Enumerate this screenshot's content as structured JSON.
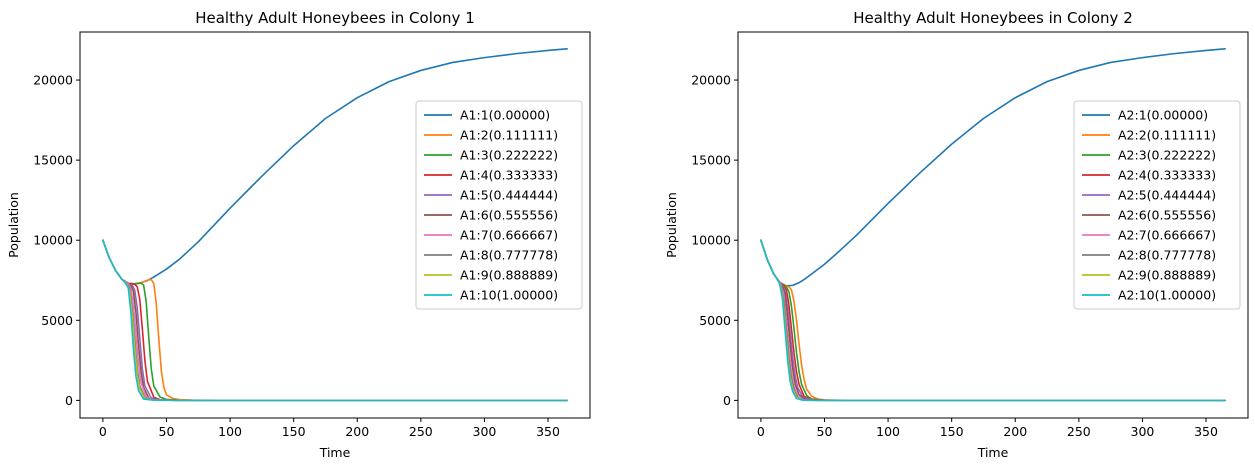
{
  "chart_data": [
    {
      "type": "line",
      "title": "Healthy Adult Honeybees in Colony 1",
      "xlabel": "Time",
      "ylabel": "Population",
      "xlim": [
        -18,
        383
      ],
      "ylim": [
        -1100,
        23000
      ],
      "xticks": [
        0,
        50,
        100,
        150,
        200,
        250,
        300,
        350
      ],
      "yticks": [
        0,
        5000,
        10000,
        15000,
        20000
      ],
      "grid": false,
      "legend_position": "center-right",
      "series": [
        {
          "name": "A1:1(0.00000)",
          "color": "#1f77b4",
          "x": [
            0,
            5,
            10,
            15,
            20,
            25,
            30,
            35,
            40,
            50,
            60,
            75,
            100,
            125,
            150,
            175,
            200,
            225,
            250,
            275,
            300,
            325,
            350,
            365
          ],
          "y": [
            10000,
            8900,
            8100,
            7550,
            7300,
            7280,
            7350,
            7480,
            7700,
            8200,
            8800,
            9900,
            12000,
            14000,
            15900,
            17600,
            18900,
            19900,
            20600,
            21100,
            21400,
            21650,
            21850,
            21950
          ]
        },
        {
          "name": "A1:2(0.111111)",
          "color": "#ff7f0e",
          "x": [
            0,
            5,
            10,
            15,
            20,
            25,
            30,
            35,
            38,
            40,
            42,
            44,
            46,
            48,
            50,
            55,
            60,
            70,
            80,
            100,
            150,
            365
          ],
          "y": [
            10000,
            8900,
            8100,
            7550,
            7300,
            7280,
            7350,
            7500,
            7550,
            7300,
            6000,
            3800,
            1800,
            800,
            350,
            120,
            50,
            20,
            10,
            0,
            0,
            0
          ]
        },
        {
          "name": "A1:3(0.222222)",
          "color": "#2ca02c",
          "x": [
            0,
            5,
            10,
            15,
            20,
            25,
            30,
            32,
            34,
            36,
            38,
            40,
            45,
            50,
            60,
            80,
            365
          ],
          "y": [
            10000,
            8900,
            8100,
            7550,
            7300,
            7280,
            7320,
            7200,
            6200,
            4000,
            2000,
            900,
            200,
            60,
            15,
            0,
            0
          ]
        },
        {
          "name": "A1:4(0.333333)",
          "color": "#d62728",
          "x": [
            0,
            5,
            10,
            15,
            20,
            25,
            27,
            29,
            31,
            33,
            35,
            40,
            45,
            60,
            365
          ],
          "y": [
            10000,
            8900,
            8100,
            7550,
            7300,
            7250,
            7100,
            6300,
            4500,
            2500,
            1200,
            200,
            40,
            5,
            0
          ]
        },
        {
          "name": "A1:5(0.444444)",
          "color": "#9467bd",
          "x": [
            0,
            5,
            10,
            15,
            20,
            23,
            25,
            27,
            29,
            31,
            33,
            38,
            45,
            60,
            365
          ],
          "y": [
            10000,
            8900,
            8100,
            7550,
            7300,
            7200,
            6900,
            5800,
            3900,
            2000,
            900,
            150,
            20,
            0,
            0
          ]
        },
        {
          "name": "A1:6(0.555556)",
          "color": "#8c564b",
          "x": [
            0,
            5,
            10,
            15,
            20,
            22,
            24,
            26,
            28,
            30,
            32,
            36,
            42,
            60,
            365
          ],
          "y": [
            10000,
            8900,
            8100,
            7550,
            7300,
            7200,
            6800,
            5500,
            3500,
            1800,
            800,
            150,
            20,
            0,
            0
          ]
        },
        {
          "name": "A1:7(0.666667)",
          "color": "#e377c2",
          "x": [
            0,
            5,
            10,
            15,
            20,
            22,
            24,
            26,
            28,
            30,
            34,
            40,
            60,
            365
          ],
          "y": [
            10000,
            8900,
            8100,
            7550,
            7280,
            7000,
            6000,
            4200,
            2300,
            1100,
            200,
            30,
            0,
            0
          ]
        },
        {
          "name": "A1:8(0.777778)",
          "color": "#7f7f7f",
          "x": [
            0,
            5,
            10,
            15,
            19,
            21,
            23,
            25,
            27,
            29,
            33,
            40,
            60,
            365
          ],
          "y": [
            10000,
            8900,
            8100,
            7550,
            7300,
            7000,
            5800,
            3900,
            2000,
            900,
            150,
            20,
            0,
            0
          ]
        },
        {
          "name": "A1:9(0.888889)",
          "color": "#bcbd22",
          "x": [
            0,
            5,
            10,
            15,
            19,
            21,
            23,
            25,
            27,
            29,
            33,
            40,
            60,
            365
          ],
          "y": [
            10000,
            8900,
            8100,
            7550,
            7250,
            6800,
            5300,
            3300,
            1600,
            700,
            100,
            10,
            0,
            0
          ]
        },
        {
          "name": "A1:10(1.00000)",
          "color": "#17becf",
          "x": [
            0,
            5,
            10,
            15,
            18,
            20,
            22,
            24,
            26,
            28,
            32,
            40,
            60,
            365
          ],
          "y": [
            10000,
            8900,
            8100,
            7550,
            7300,
            7000,
            5500,
            3200,
            1500,
            600,
            80,
            10,
            0,
            0
          ]
        }
      ]
    },
    {
      "type": "line",
      "title": "Healthy Adult Honeybees in Colony 2",
      "xlabel": "Time",
      "ylabel": "Population",
      "xlim": [
        -18,
        383
      ],
      "ylim": [
        -1100,
        23000
      ],
      "xticks": [
        0,
        50,
        100,
        150,
        200,
        250,
        300,
        350
      ],
      "yticks": [
        0,
        5000,
        10000,
        15000,
        20000
      ],
      "grid": false,
      "legend_position": "center-right",
      "series": [
        {
          "name": "A2:1(0.00000)",
          "color": "#1f77b4",
          "x": [
            0,
            5,
            10,
            15,
            20,
            25,
            30,
            35,
            40,
            50,
            60,
            75,
            100,
            125,
            150,
            175,
            200,
            225,
            250,
            275,
            300,
            325,
            350,
            365
          ],
          "y": [
            10000,
            8800,
            7900,
            7350,
            7150,
            7180,
            7350,
            7600,
            7900,
            8500,
            9200,
            10300,
            12300,
            14200,
            16000,
            17600,
            18900,
            19900,
            20600,
            21100,
            21400,
            21650,
            21850,
            21950
          ]
        },
        {
          "name": "A2:2(0.111111)",
          "color": "#ff7f0e",
          "x": [
            0,
            5,
            10,
            15,
            20,
            22,
            24,
            26,
            28,
            30,
            32,
            34,
            36,
            40,
            45,
            50,
            60,
            80,
            100,
            365
          ],
          "y": [
            10000,
            8800,
            7900,
            7350,
            7150,
            7100,
            6900,
            6200,
            5000,
            3500,
            2200,
            1300,
            700,
            250,
            80,
            30,
            10,
            0,
            0,
            0
          ]
        },
        {
          "name": "A2:3(0.222222)",
          "color": "#2ca02c",
          "x": [
            0,
            5,
            10,
            15,
            20,
            22,
            24,
            26,
            28,
            30,
            32,
            36,
            40,
            50,
            70,
            365
          ],
          "y": [
            10000,
            8800,
            7900,
            7350,
            7100,
            6800,
            5900,
            4500,
            3000,
            1800,
            1000,
            300,
            80,
            10,
            0,
            0
          ]
        },
        {
          "name": "A2:4(0.333333)",
          "color": "#d62728",
          "x": [
            0,
            5,
            10,
            15,
            18,
            20,
            22,
            24,
            26,
            28,
            30,
            34,
            40,
            60,
            365
          ],
          "y": [
            10000,
            8800,
            7900,
            7350,
            7150,
            6900,
            6000,
            4500,
            3000,
            1800,
            1000,
            250,
            40,
            0,
            0
          ]
        },
        {
          "name": "A2:5(0.444444)",
          "color": "#9467bd",
          "x": [
            0,
            5,
            10,
            15,
            17,
            19,
            21,
            23,
            25,
            27,
            29,
            33,
            40,
            60,
            365
          ],
          "y": [
            10000,
            8800,
            7900,
            7350,
            7200,
            6900,
            5800,
            4200,
            2700,
            1500,
            800,
            200,
            20,
            0,
            0
          ]
        },
        {
          "name": "A2:6(0.555556)",
          "color": "#8c564b",
          "x": [
            0,
            5,
            10,
            15,
            17,
            19,
            21,
            23,
            25,
            27,
            30,
            35,
            45,
            365
          ],
          "y": [
            10000,
            8800,
            7900,
            7350,
            7150,
            6600,
            5200,
            3500,
            2000,
            1000,
            350,
            50,
            0,
            0
          ]
        },
        {
          "name": "A2:7(0.666667)",
          "color": "#e377c2",
          "x": [
            0,
            5,
            10,
            14,
            16,
            18,
            20,
            22,
            24,
            26,
            29,
            34,
            45,
            365
          ],
          "y": [
            10000,
            8800,
            7900,
            7450,
            7200,
            6600,
            5000,
            3200,
            1800,
            900,
            250,
            30,
            0,
            0
          ]
        },
        {
          "name": "A2:8(0.777778)",
          "color": "#7f7f7f",
          "x": [
            0,
            5,
            10,
            14,
            16,
            18,
            20,
            22,
            24,
            26,
            29,
            34,
            45,
            365
          ],
          "y": [
            10000,
            8800,
            7900,
            7450,
            7100,
            6200,
            4400,
            2600,
            1400,
            650,
            150,
            15,
            0,
            0
          ]
        },
        {
          "name": "A2:9(0.888889)",
          "color": "#bcbd22",
          "x": [
            0,
            5,
            10,
            13,
            15,
            17,
            19,
            21,
            23,
            25,
            28,
            33,
            45,
            365
          ],
          "y": [
            10000,
            8800,
            7900,
            7550,
            7250,
            6500,
            4800,
            2900,
            1500,
            700,
            180,
            15,
            0,
            0
          ]
        },
        {
          "name": "A2:10(1.00000)",
          "color": "#17becf",
          "x": [
            0,
            5,
            10,
            13,
            15,
            17,
            19,
            21,
            23,
            25,
            28,
            33,
            45,
            365
          ],
          "y": [
            10000,
            8800,
            7900,
            7550,
            7200,
            6300,
            4400,
            2500,
            1200,
            550,
            120,
            10,
            0,
            0
          ]
        }
      ]
    }
  ]
}
